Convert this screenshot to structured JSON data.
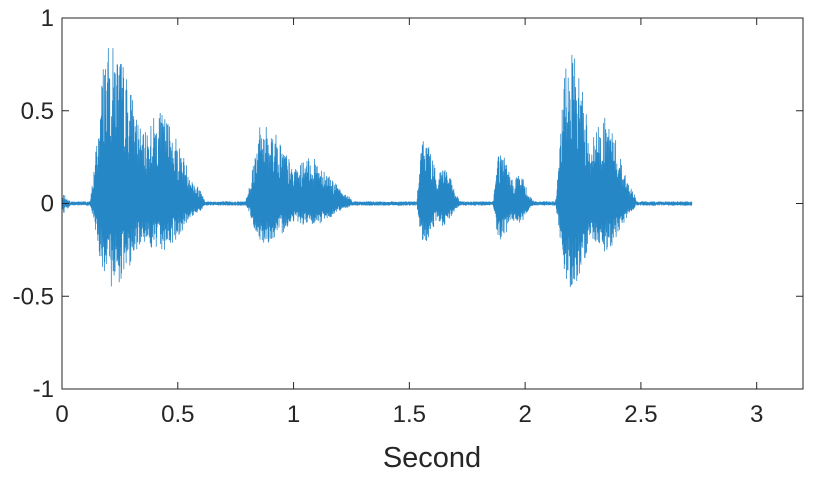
{
  "chart_data": {
    "type": "line",
    "title": "",
    "xlabel": "Second",
    "ylabel": "",
    "xlim": [
      0,
      3.2
    ],
    "ylim": [
      -1,
      1
    ],
    "x_ticks": [
      0,
      0.5,
      1,
      1.5,
      2,
      2.5,
      3
    ],
    "x_tick_labels": [
      "0",
      "0.5",
      "1",
      "1.5",
      "2",
      "2.5",
      "3"
    ],
    "y_ticks": [
      1,
      0.5,
      0,
      -0.5,
      -1
    ],
    "y_tick_labels": [
      "1",
      "0.5",
      "0",
      "-0.5",
      "-1"
    ],
    "grid": false,
    "box": true,
    "signal_end_x": 2.72,
    "sample_rate_hz": 1000,
    "series_color": "#0072BD",
    "series": [
      {
        "kind": "audio-waveform",
        "bursts": [
          {
            "start": 0.0,
            "end": 0.04,
            "peak_pos": 0.06,
            "peak_neg": -0.06
          },
          {
            "start": 0.12,
            "end": 0.62,
            "peak_pos": 1.0,
            "peak_neg": -0.53
          },
          {
            "start": 0.79,
            "end": 1.26,
            "peak_pos": 0.5,
            "peak_neg": -0.25
          },
          {
            "start": 1.53,
            "end": 1.72,
            "peak_pos": 0.43,
            "peak_neg": -0.26
          },
          {
            "start": 1.86,
            "end": 2.04,
            "peak_pos": 0.34,
            "peak_neg": -0.24
          },
          {
            "start": 2.13,
            "end": 2.48,
            "peak_pos": 0.95,
            "peak_neg": -0.53
          }
        ],
        "noise_floor": 0.012
      }
    ]
  }
}
